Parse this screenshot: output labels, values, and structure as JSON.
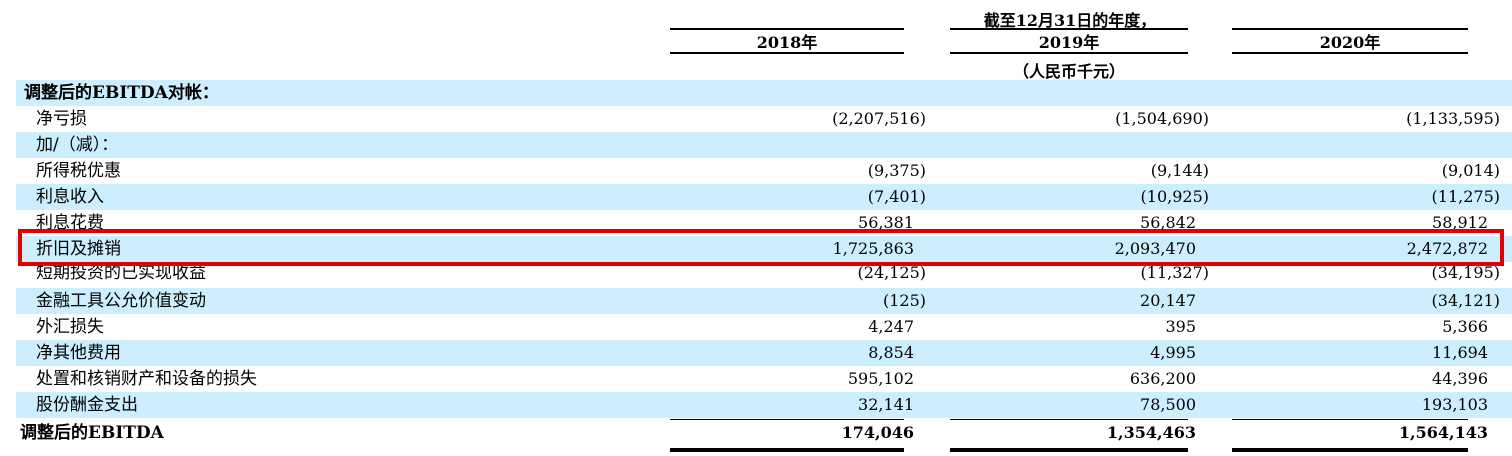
{
  "header": {
    "period": "截至12月31日的年度，",
    "years": [
      "2018年",
      "2019年",
      "2020年"
    ],
    "unit": "（人民币千元）"
  },
  "section_title": "调整后的EBITDA对帐：",
  "rows": [
    {
      "label": "净亏损",
      "v": [
        "(2,207,516)",
        "(1,504,690)",
        "(1,133,595)"
      ]
    },
    {
      "label": "加/（减）：",
      "v": [
        "",
        "",
        ""
      ]
    },
    {
      "label": "所得税优惠",
      "v": [
        "(9,375)",
        "(9,144)",
        "(9,014)"
      ]
    },
    {
      "label": "利息收入",
      "v": [
        "(7,401)",
        "(10,925)",
        "(11,275)"
      ]
    },
    {
      "label": "利息花费",
      "v": [
        "56,381",
        "56,842",
        "58,912"
      ]
    },
    {
      "label": "折旧及摊销",
      "v": [
        "1,725,863",
        "2,093,470",
        "2,472,872"
      ]
    },
    {
      "label": "短期投资的已实现收益",
      "v": [
        "(24,125)",
        "(11,327)",
        "(34,195)"
      ]
    },
    {
      "label": "金融工具公允价值变动",
      "v": [
        "(125)",
        "20,147",
        "(34,121)"
      ]
    },
    {
      "label": "外汇损失",
      "v": [
        "4,247",
        "395",
        "5,366"
      ]
    },
    {
      "label": "净其他费用",
      "v": [
        "8,854",
        "4,995",
        "11,694"
      ]
    },
    {
      "label": "处置和核销财产和设备的损失",
      "v": [
        "595,102",
        "636,200",
        "44,396"
      ]
    },
    {
      "label": "股份酬金支出",
      "v": [
        "32,141",
        "78,500",
        "193,103"
      ]
    }
  ],
  "total": {
    "label": "调整后的EBITDA",
    "v": [
      "174,046",
      "1,354,463",
      "1,564,143"
    ]
  },
  "colors": {
    "shade": "#cceeff",
    "highlight": "#e00000"
  }
}
